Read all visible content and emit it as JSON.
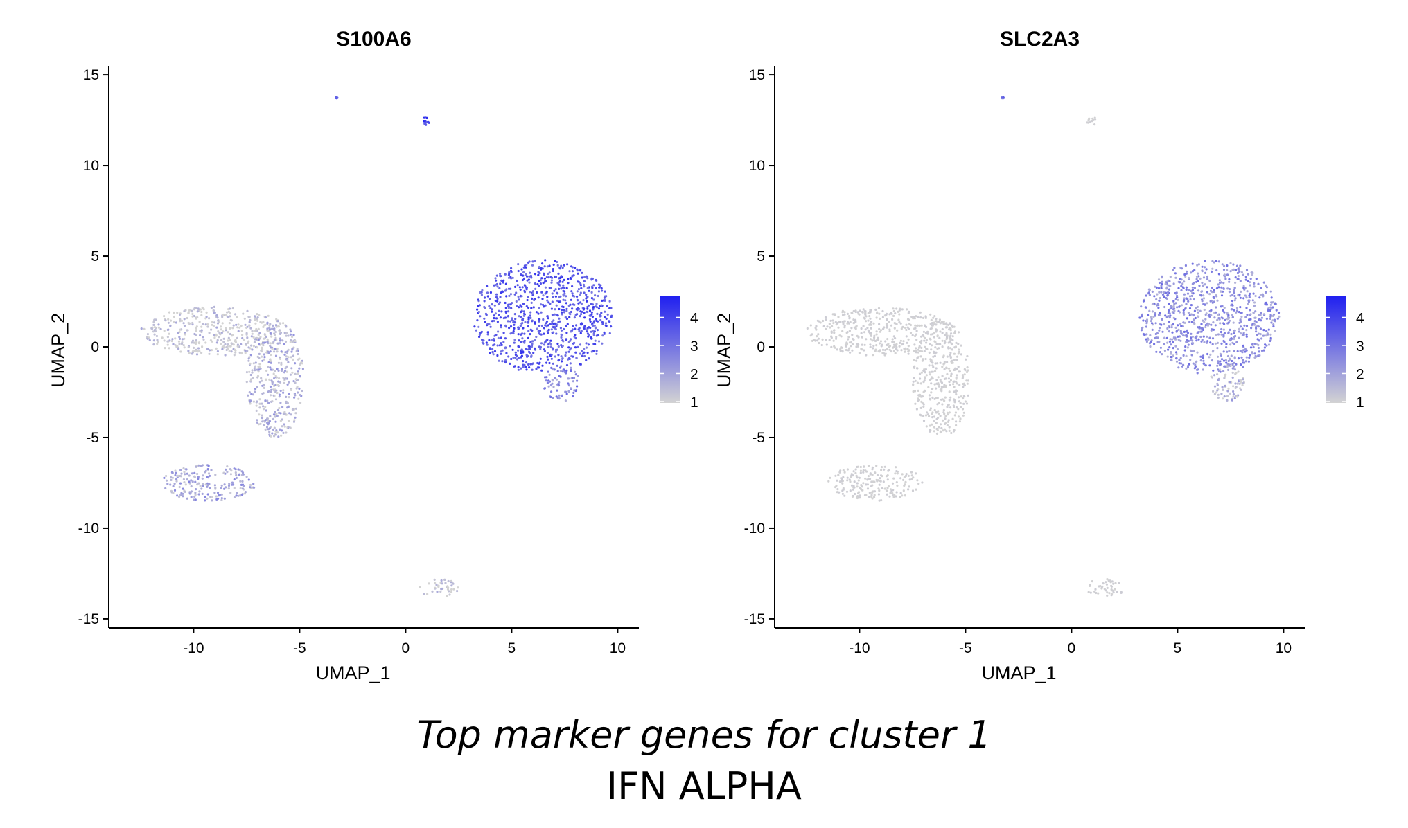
{
  "chart_data": [
    {
      "type": "scatter",
      "title": "S100A6",
      "xlabel": "UMAP_1",
      "ylabel": "UMAP_2",
      "xlim": [
        -14,
        11
      ],
      "ylim": [
        -15.5,
        15.5
      ],
      "xticks": [
        -10,
        -5,
        0,
        5,
        10
      ],
      "yticks": [
        -15,
        -10,
        -5,
        0,
        5,
        10,
        15
      ],
      "xtick_labels": [
        "-10",
        "-5",
        "0",
        "5",
        "10"
      ],
      "ytick_labels": [
        "-15",
        "-10",
        "-5",
        "0",
        "5",
        "10",
        "15"
      ],
      "color_scale": {
        "low": "#d3d3d3",
        "high": "#2020f0",
        "min": 1,
        "max": 4.8,
        "ticks": [
          1,
          2,
          3,
          4
        ],
        "tick_labels": [
          "1",
          "2",
          "3",
          "4"
        ]
      },
      "grid": false,
      "legend": "right",
      "clusters": [
        {
          "name": "left-arm",
          "x": [
            -12.5,
            -5.5
          ],
          "y": [
            -0.5,
            2.2
          ],
          "expression": 1.2
        },
        {
          "name": "left-stem",
          "x": [
            -7.5,
            -4.8
          ],
          "y": [
            -5.0,
            1.5
          ],
          "expression": 1.6
        },
        {
          "name": "lower-left-island",
          "x": [
            -11.5,
            -7.0
          ],
          "y": [
            -8.5,
            -6.5
          ],
          "expression": 1.9
        },
        {
          "name": "right-blob",
          "x": [
            3.2,
            9.8
          ],
          "y": [
            -1.5,
            4.8
          ],
          "expression": 3.6
        },
        {
          "name": "right-tail",
          "x": [
            6.5,
            8.2
          ],
          "y": [
            -3.0,
            -1.0
          ],
          "expression": 2.5
        },
        {
          "name": "bottom-ring",
          "x": [
            0.6,
            2.5
          ],
          "y": [
            -13.8,
            -12.8
          ],
          "expression": 1.1
        },
        {
          "name": "top-streak",
          "x": [
            0.7,
            1.2
          ],
          "y": [
            12.2,
            12.7
          ],
          "expression": 4.2
        },
        {
          "name": "top-dot",
          "x": [
            -3.3,
            -3.2
          ],
          "y": [
            13.7,
            13.8
          ],
          "expression": 3.8
        }
      ]
    },
    {
      "type": "scatter",
      "title": "SLC2A3",
      "xlabel": "UMAP_1",
      "ylabel": "UMAP_2",
      "xlim": [
        -14,
        11
      ],
      "ylim": [
        -15.5,
        15.5
      ],
      "xticks": [
        -10,
        -5,
        0,
        5,
        10
      ],
      "yticks": [
        -15,
        -10,
        -5,
        0,
        5,
        10,
        15
      ],
      "xtick_labels": [
        "-10",
        "-5",
        "0",
        "5",
        "10"
      ],
      "ytick_labels": [
        "-15",
        "-10",
        "-5",
        "0",
        "5",
        "10",
        "15"
      ],
      "color_scale": {
        "low": "#d3d3d3",
        "high": "#2020f0",
        "min": 1,
        "max": 4.8,
        "ticks": [
          1,
          2,
          3,
          4
        ],
        "tick_labels": [
          "1",
          "2",
          "3",
          "4"
        ]
      },
      "grid": false,
      "legend": "right",
      "clusters": [
        {
          "name": "left-arm",
          "x": [
            -12.5,
            -5.5
          ],
          "y": [
            -0.5,
            2.2
          ],
          "expression": 1.0
        },
        {
          "name": "left-stem",
          "x": [
            -7.5,
            -4.8
          ],
          "y": [
            -5.0,
            1.5
          ],
          "expression": 1.0
        },
        {
          "name": "lower-left-island",
          "x": [
            -11.5,
            -7.0
          ],
          "y": [
            -8.5,
            -6.5
          ],
          "expression": 1.0
        },
        {
          "name": "right-blob",
          "x": [
            3.2,
            9.8
          ],
          "y": [
            -1.5,
            4.8
          ],
          "expression": 2.4
        },
        {
          "name": "right-tail",
          "x": [
            6.5,
            8.2
          ],
          "y": [
            -3.0,
            -1.0
          ],
          "expression": 1.5
        },
        {
          "name": "bottom-ring",
          "x": [
            0.6,
            2.5
          ],
          "y": [
            -13.8,
            -12.8
          ],
          "expression": 1.0
        },
        {
          "name": "top-streak",
          "x": [
            0.7,
            1.2
          ],
          "y": [
            12.2,
            12.7
          ],
          "expression": 1.0
        },
        {
          "name": "top-dot",
          "x": [
            -3.3,
            -3.2
          ],
          "y": [
            13.7,
            13.8
          ],
          "expression": 2.8
        }
      ]
    }
  ],
  "caption": {
    "line1": "Top marker genes for cluster 1",
    "line2": "IFN ALPHA"
  }
}
